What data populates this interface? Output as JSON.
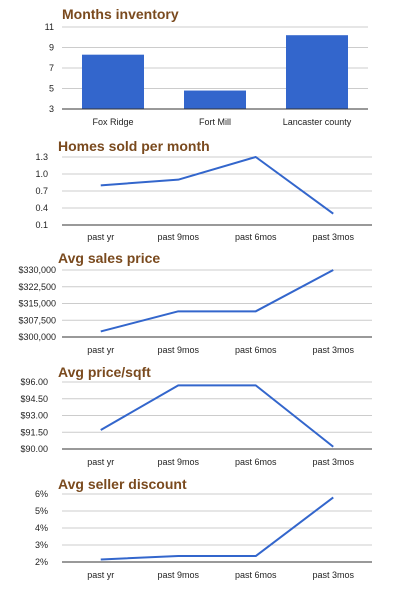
{
  "colors": {
    "title": "#7a4a1e",
    "bar": "#3366cc",
    "line": "#3366cc",
    "grid": "#cccccc",
    "axis": "#333333",
    "text": "#222222"
  },
  "chart_data": [
    {
      "type": "bar",
      "title": "Months inventory",
      "categories": [
        "Fox Ridge",
        "Fort Mill",
        "Lancaster county"
      ],
      "values": [
        8.3,
        4.8,
        10.2
      ],
      "ylim": [
        3,
        11
      ],
      "yticks": [
        3,
        5,
        7,
        9,
        11
      ],
      "ytick_labels": [
        "3",
        "5",
        "7",
        "9",
        "11"
      ],
      "grid": true,
      "legend": "none"
    },
    {
      "type": "line",
      "title": "Homes sold per month",
      "categories": [
        "past yr",
        "past 9mos",
        "past 6mos",
        "past 3mos"
      ],
      "values": [
        0.8,
        0.9,
        1.3,
        0.3
      ],
      "ylim": [
        0.1,
        1.3
      ],
      "yticks": [
        0.1,
        0.4,
        0.7,
        1.0,
        1.3
      ],
      "ytick_labels": [
        "0.1",
        "0.4",
        "0.7",
        "1.0",
        "1.3"
      ],
      "grid": true,
      "legend": "none"
    },
    {
      "type": "line",
      "title": "Avg sales price",
      "categories": [
        "past yr",
        "past 9mos",
        "past 6mos",
        "past 3mos"
      ],
      "values": [
        302500,
        311500,
        311500,
        330000
      ],
      "ylim": [
        300000,
        330000
      ],
      "yticks": [
        300000,
        307500,
        315000,
        322500,
        330000
      ],
      "ytick_labels": [
        "$300,000",
        "$307,500",
        "$315,000",
        "$322,500",
        "$330,000"
      ],
      "grid": true,
      "legend": "none"
    },
    {
      "type": "line",
      "title": "Avg price/sqft",
      "categories": [
        "past yr",
        "past 9mos",
        "past 6mos",
        "past 3mos"
      ],
      "values": [
        91.7,
        95.7,
        95.7,
        90.2
      ],
      "ylim": [
        90,
        96
      ],
      "yticks": [
        90,
        91.5,
        93,
        94.5,
        96
      ],
      "ytick_labels": [
        "$90.00",
        "$91.50",
        "$93.00",
        "$94.50",
        "$96.00"
      ],
      "grid": true,
      "legend": "none"
    },
    {
      "type": "line",
      "title": "Avg seller discount",
      "categories": [
        "past yr",
        "past 9mos",
        "past 6mos",
        "past 3mos"
      ],
      "values": [
        2.15,
        2.35,
        2.35,
        5.8
      ],
      "ylim": [
        2,
        6
      ],
      "yticks": [
        2,
        3,
        4,
        5,
        6
      ],
      "ytick_labels": [
        "2%",
        "3%",
        "4%",
        "5%",
        "6%"
      ],
      "grid": true,
      "legend": "none"
    }
  ]
}
